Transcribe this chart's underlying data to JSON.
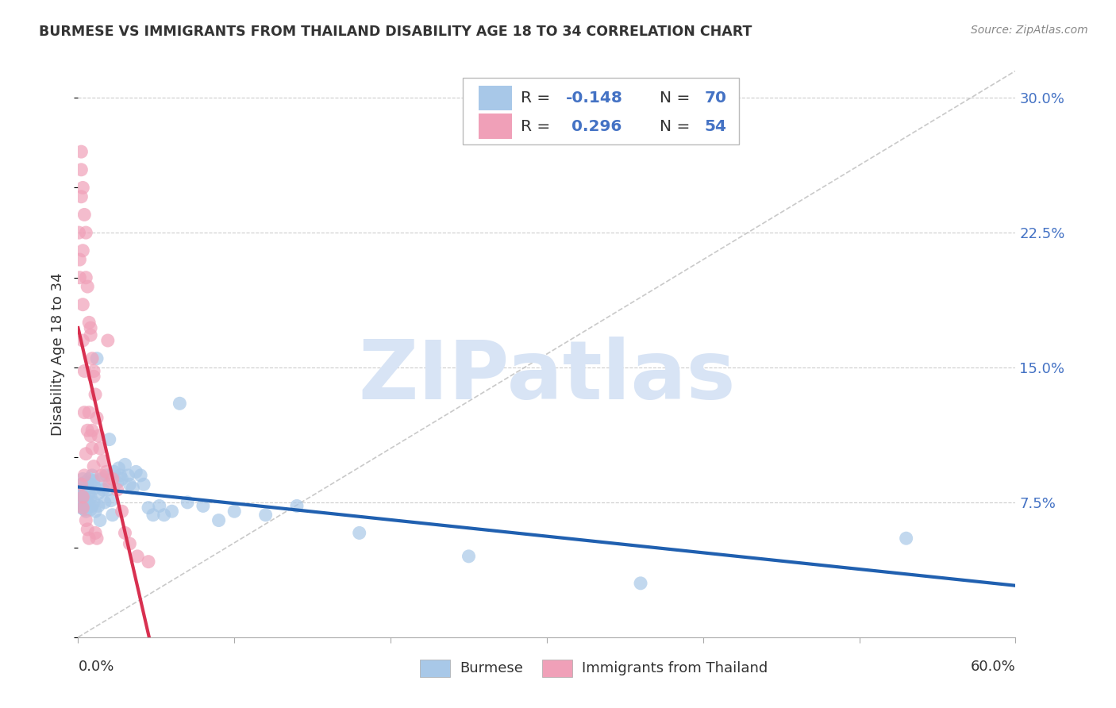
{
  "title": "BURMESE VS IMMIGRANTS FROM THAILAND DISABILITY AGE 18 TO 34 CORRELATION CHART",
  "source": "Source: ZipAtlas.com",
  "ylabel": "Disability Age 18 to 34",
  "ytick_labels": [
    "7.5%",
    "15.0%",
    "22.5%",
    "30.0%"
  ],
  "ytick_vals": [
    0.075,
    0.15,
    0.225,
    0.3
  ],
  "xmin": 0.0,
  "xmax": 0.6,
  "ymin": 0.0,
  "ymax": 0.315,
  "burmese_color": "#A8C8E8",
  "thailand_color": "#F0A0B8",
  "burmese_line_color": "#2060B0",
  "thailand_line_color": "#D83050",
  "ref_line_color": "#C0C0C0",
  "legend_R_color": "#4472C4",
  "legend_N_color": "#4472C4",
  "watermark_color": "#D8E4F5",
  "background_color": "#FFFFFF",
  "burmese_x": [
    0.0005,
    0.001,
    0.001,
    0.0015,
    0.002,
    0.002,
    0.002,
    0.003,
    0.003,
    0.003,
    0.004,
    0.004,
    0.004,
    0.005,
    0.005,
    0.005,
    0.006,
    0.006,
    0.007,
    0.007,
    0.007,
    0.008,
    0.008,
    0.008,
    0.009,
    0.009,
    0.01,
    0.01,
    0.011,
    0.011,
    0.012,
    0.013,
    0.013,
    0.014,
    0.015,
    0.016,
    0.017,
    0.018,
    0.019,
    0.02,
    0.021,
    0.022,
    0.023,
    0.025,
    0.026,
    0.027,
    0.028,
    0.03,
    0.032,
    0.033,
    0.035,
    0.037,
    0.04,
    0.042,
    0.045,
    0.048,
    0.052,
    0.055,
    0.06,
    0.065,
    0.07,
    0.08,
    0.09,
    0.1,
    0.12,
    0.14,
    0.18,
    0.25,
    0.36,
    0.53
  ],
  "burmese_y": [
    0.082,
    0.079,
    0.075,
    0.08,
    0.085,
    0.076,
    0.072,
    0.088,
    0.08,
    0.074,
    0.086,
    0.078,
    0.071,
    0.084,
    0.077,
    0.07,
    0.083,
    0.075,
    0.088,
    0.08,
    0.073,
    0.085,
    0.078,
    0.071,
    0.09,
    0.073,
    0.087,
    0.075,
    0.083,
    0.07,
    0.155,
    0.08,
    0.073,
    0.065,
    0.088,
    0.082,
    0.075,
    0.09,
    0.082,
    0.11,
    0.076,
    0.068,
    0.092,
    0.086,
    0.094,
    0.09,
    0.088,
    0.096,
    0.09,
    0.085,
    0.083,
    0.092,
    0.09,
    0.085,
    0.072,
    0.068,
    0.073,
    0.068,
    0.07,
    0.13,
    0.075,
    0.073,
    0.065,
    0.07,
    0.068,
    0.073,
    0.058,
    0.045,
    0.03,
    0.055
  ],
  "thailand_x": [
    0.0005,
    0.001,
    0.001,
    0.002,
    0.002,
    0.002,
    0.003,
    0.003,
    0.003,
    0.004,
    0.004,
    0.005,
    0.005,
    0.005,
    0.006,
    0.006,
    0.007,
    0.007,
    0.008,
    0.008,
    0.009,
    0.009,
    0.01,
    0.01,
    0.011,
    0.012,
    0.013,
    0.014,
    0.015,
    0.016,
    0.018,
    0.019,
    0.02,
    0.022,
    0.025,
    0.028,
    0.03,
    0.033,
    0.038,
    0.045,
    0.003,
    0.004,
    0.003,
    0.004,
    0.002,
    0.003,
    0.005,
    0.006,
    0.007,
    0.008,
    0.009,
    0.01,
    0.011,
    0.012
  ],
  "thailand_y": [
    0.225,
    0.21,
    0.2,
    0.27,
    0.26,
    0.245,
    0.215,
    0.185,
    0.165,
    0.148,
    0.125,
    0.225,
    0.2,
    0.102,
    0.195,
    0.115,
    0.175,
    0.125,
    0.168,
    0.112,
    0.155,
    0.105,
    0.145,
    0.095,
    0.135,
    0.122,
    0.112,
    0.105,
    0.09,
    0.098,
    0.092,
    0.165,
    0.085,
    0.088,
    0.082,
    0.07,
    0.058,
    0.052,
    0.045,
    0.042,
    0.25,
    0.235,
    0.078,
    0.09,
    0.085,
    0.072,
    0.065,
    0.06,
    0.055,
    0.172,
    0.115,
    0.148,
    0.058,
    0.055
  ]
}
